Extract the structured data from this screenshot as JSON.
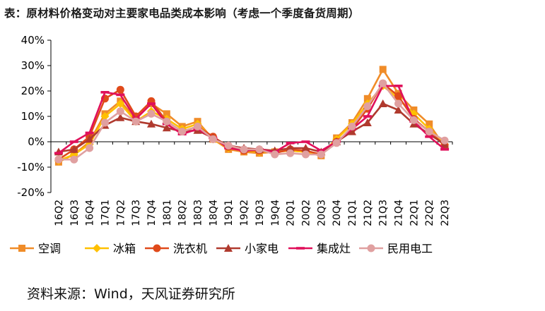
{
  "title": "表：原材料价格变动对主要家电品类成本影响（考虑一个季度备货周期）",
  "source": "资料来源：Wind，天风证券研究所",
  "chart_data": {
    "type": "line",
    "title": "表：原材料价格变动对主要家电品类成本影响（考虑一个季度备货周期）",
    "xlabel": "",
    "ylabel": "",
    "ylim": [
      -0.2,
      0.4
    ],
    "yticks": [
      -0.2,
      -0.1,
      0,
      0.1,
      0.2,
      0.3,
      0.4
    ],
    "ytick_labels": [
      "-20%",
      "-10%",
      "0%",
      "10%",
      "20%",
      "30%",
      "40%"
    ],
    "grid": false,
    "legend_position": "bottom",
    "categories": [
      "16Q2",
      "16Q3",
      "16Q4",
      "17Q1",
      "17Q2",
      "17Q3",
      "17Q4",
      "18Q1",
      "18Q2",
      "18Q3",
      "18Q4",
      "19Q1",
      "19Q2",
      "19Q3",
      "19Q4",
      "20Q1",
      "20Q2",
      "20Q3",
      "20Q4",
      "21Q1",
      "21Q2",
      "21Q3",
      "21Q4",
      "22Q1",
      "22Q2",
      "22Q3"
    ],
    "series": [
      {
        "name": "空调",
        "color": "#F08C28",
        "marker": "square",
        "values": [
          -0.08,
          -0.05,
          0.0,
          0.11,
          0.16,
          0.09,
          0.15,
          0.11,
          0.06,
          0.08,
          0.01,
          -0.03,
          -0.04,
          -0.045,
          -0.04,
          -0.035,
          -0.04,
          -0.055,
          0.015,
          0.075,
          0.17,
          0.285,
          0.19,
          0.125,
          0.07,
          -0.02
        ]
      },
      {
        "name": "冰箱",
        "color": "#FFC000",
        "marker": "diamond",
        "values": [
          -0.075,
          -0.05,
          -0.01,
          0.1,
          0.15,
          0.08,
          0.12,
          0.09,
          0.05,
          0.07,
          0.01,
          -0.025,
          -0.035,
          -0.04,
          -0.04,
          -0.035,
          -0.04,
          -0.05,
          0.01,
          0.07,
          0.15,
          0.22,
          0.17,
          0.11,
          0.05,
          -0.01
        ]
      },
      {
        "name": "洗衣机",
        "color": "#E04A1A",
        "marker": "circle",
        "values": [
          -0.07,
          -0.03,
          0.02,
          0.17,
          0.205,
          0.1,
          0.16,
          0.08,
          0.04,
          0.06,
          0.02,
          -0.02,
          -0.035,
          -0.035,
          -0.045,
          -0.03,
          -0.035,
          -0.05,
          0.0,
          0.05,
          0.13,
          0.23,
          0.18,
          0.09,
          0.04,
          -0.015
        ]
      },
      {
        "name": "小家电",
        "color": "#B03A2E",
        "marker": "triangle",
        "values": [
          -0.04,
          -0.03,
          0.01,
          0.065,
          0.095,
          0.08,
          0.07,
          0.055,
          0.04,
          0.045,
          0.015,
          -0.015,
          -0.025,
          -0.03,
          -0.035,
          -0.025,
          -0.025,
          -0.04,
          0.0,
          0.04,
          0.075,
          0.15,
          0.125,
          0.07,
          0.03,
          -0.01
        ]
      },
      {
        "name": "集成灶",
        "color": "#E0105A",
        "marker": "dash",
        "values": [
          -0.045,
          0.0,
          0.035,
          0.195,
          0.185,
          0.09,
          0.15,
          0.07,
          0.03,
          0.05,
          0.015,
          -0.025,
          -0.035,
          -0.03,
          -0.04,
          -0.005,
          0.0,
          -0.035,
          0.0,
          0.05,
          0.1,
          0.22,
          0.22,
          0.08,
          0.02,
          -0.03
        ]
      },
      {
        "name": "民用电工",
        "color": "#E0A0A0",
        "marker": "circle",
        "values": [
          -0.07,
          -0.07,
          -0.025,
          0.075,
          0.12,
          0.08,
          0.11,
          0.08,
          0.04,
          0.06,
          0.01,
          -0.015,
          -0.03,
          -0.03,
          -0.05,
          -0.045,
          -0.05,
          -0.05,
          -0.005,
          0.06,
          0.14,
          0.23,
          0.15,
          0.085,
          0.04,
          0.005
        ]
      }
    ]
  }
}
